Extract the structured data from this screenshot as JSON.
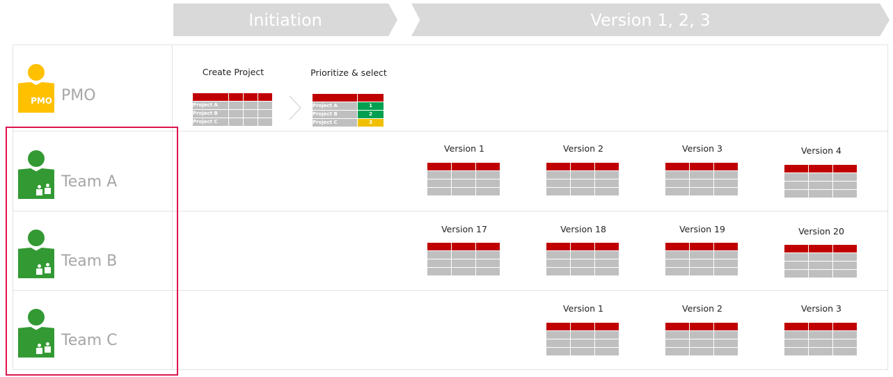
{
  "phases": [
    "Initiation",
    "Version 1, 2, 3"
  ],
  "roles": [
    {
      "name": "PMO",
      "icon": "pmo-person-icon",
      "color": "#ffc000",
      "tag": "PMO"
    },
    {
      "name": "Team A",
      "icon": "team-person-icon",
      "color": "#339933"
    },
    {
      "name": "Team B",
      "icon": "team-person-icon",
      "color": "#339933"
    },
    {
      "name": "Team C",
      "icon": "team-person-icon",
      "color": "#339933"
    }
  ],
  "pmo": {
    "create_label": "Create Project",
    "prioritize_label": "Prioritize & select",
    "projects": [
      "Project A",
      "Project B",
      "Project C"
    ],
    "priorities": [
      {
        "value": "1",
        "color": "#00a050"
      },
      {
        "value": "2",
        "color": "#00a050"
      },
      {
        "value": "3",
        "color": "#f0c000"
      }
    ]
  },
  "teams": {
    "team_a": [
      "Version 1",
      "Version 2",
      "Version 3",
      "Version 4"
    ],
    "team_b": [
      "Version 17",
      "Version 18",
      "Version 19",
      "Version 20"
    ],
    "team_c": [
      "Version 1",
      "Version 2",
      "Version 3"
    ]
  },
  "colors": {
    "header_red": "#c00000",
    "cell_gray": "#bfbfbf",
    "highlight": "#e0124f"
  }
}
